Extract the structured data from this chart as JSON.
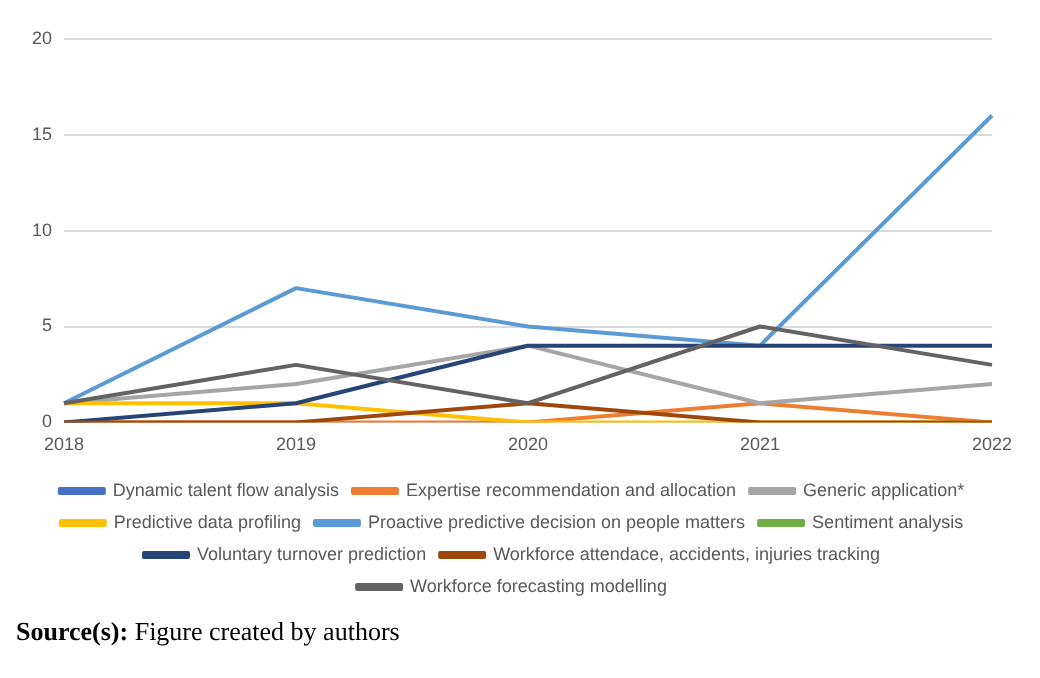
{
  "chart_data": {
    "type": "line",
    "categories": [
      "2018",
      "2019",
      "2020",
      "2021",
      "2022"
    ],
    "series": [
      {
        "name": "Dynamic talent flow analysis",
        "color": "#4472c4",
        "values": [
          null,
          null,
          null,
          null,
          null
        ]
      },
      {
        "name": "Expertise recommendation and allocation",
        "color": "#ed7d31",
        "values": [
          0,
          0,
          0,
          1,
          0
        ]
      },
      {
        "name": "Generic application*",
        "color": "#a5a5a5",
        "values": [
          1,
          2,
          4,
          1,
          2
        ]
      },
      {
        "name": "Predictive data profiling",
        "color": "#ffc000",
        "values": [
          1,
          1,
          0,
          0,
          0
        ]
      },
      {
        "name": "Proactive predictive decision on people matters",
        "color": "#5b9bd5",
        "values": [
          1,
          7,
          5,
          4,
          16
        ]
      },
      {
        "name": "Sentiment analysis",
        "color": "#70ad47",
        "values": [
          null,
          null,
          null,
          null,
          null
        ]
      },
      {
        "name": "Voluntary turnover prediction",
        "color": "#264478",
        "values": [
          0,
          1,
          4,
          4,
          4
        ]
      },
      {
        "name": "Workforce attendace, accidents, injuries tracking",
        "color": "#9e480e",
        "values": [
          0,
          0,
          1,
          0,
          0
        ]
      },
      {
        "name": "Workforce forecasting modelling",
        "color": "#636363",
        "values": [
          1,
          3,
          1,
          5,
          3
        ]
      }
    ],
    "ylim": [
      0,
      20
    ],
    "yticks": [
      0,
      5,
      10,
      15,
      20
    ],
    "grid": "y",
    "legend": "bottom",
    "marker": "none",
    "line_style": "solid",
    "annotations": [
      "Source(s): Figure created by authors"
    ]
  }
}
